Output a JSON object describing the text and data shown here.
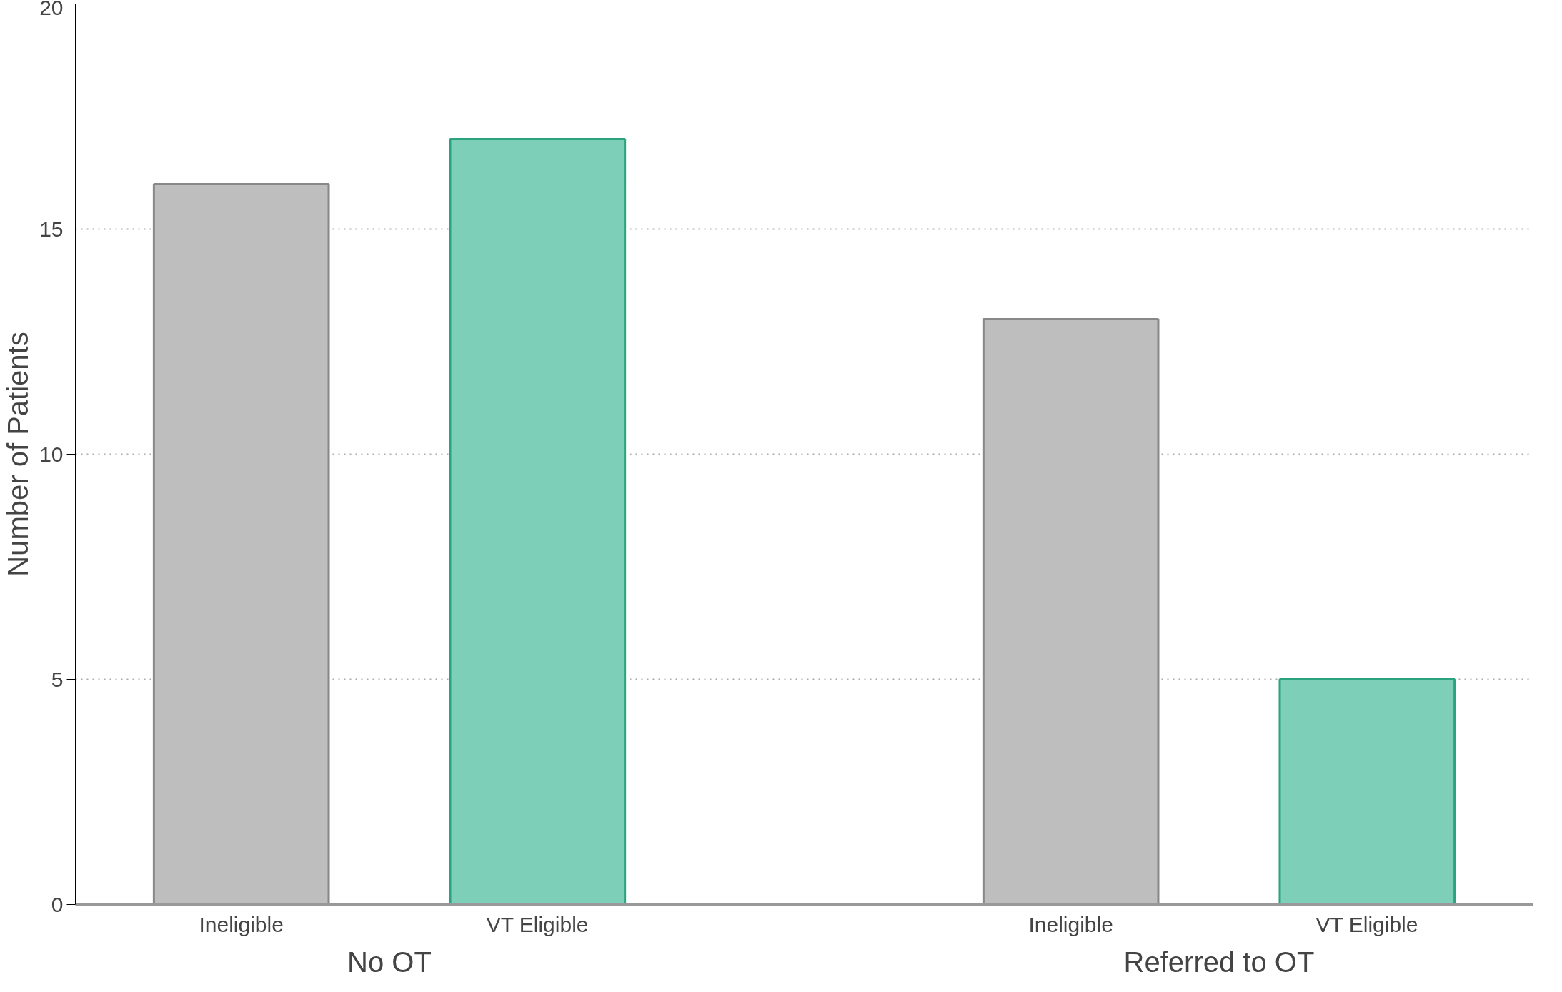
{
  "chart_data": {
    "type": "bar",
    "ylabel": "Number of Patients",
    "categories": [
      "No OT",
      "Referred to OT"
    ],
    "series": [
      {
        "name": "Ineligible",
        "color": "#bebebe",
        "values": [
          16,
          13
        ]
      },
      {
        "name": "VT Eligible",
        "color": "#7ecfb8",
        "values": [
          17,
          5
        ]
      }
    ],
    "ylim": [
      0,
      20
    ],
    "yticks": [
      0,
      5,
      10,
      15,
      20
    ],
    "grid": "y"
  }
}
